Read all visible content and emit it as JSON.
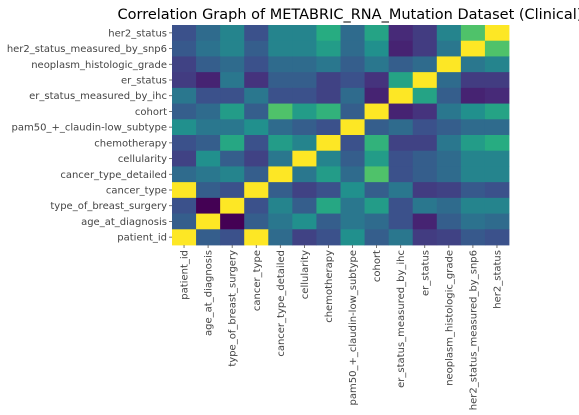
{
  "chart_data": {
    "type": "heatmap",
    "title": "Correlation Graph of METABRIC_RNA_Mutation Dataset (Clinical)",
    "xlabel": "",
    "ylabel": "",
    "colormap": "viridis",
    "grid": false,
    "legend": "none",
    "x_labels": [
      "patient_id",
      "age_at_diagnosis",
      "type_of_breast_surgery",
      "cancer_type",
      "cancer_type_detailed",
      "cellularity",
      "chemotherapy",
      "pam50_+_claudin-low_subtype",
      "cohort",
      "er_status_measured_by_ihc",
      "er_status",
      "neoplasm_histologic_grade",
      "her2_status_measured_by_snp6",
      "her2_status"
    ],
    "y_labels": [
      "her2_status",
      "her2_status_measured_by_snp6",
      "neoplasm_histologic_grade",
      "er_status",
      "er_status_measured_by_ihc",
      "cohort",
      "pam50_+_claudin-low_subtype",
      "chemotherapy",
      "cellularity",
      "cancer_type_detailed",
      "cancer_type",
      "type_of_breast_surgery",
      "age_at_diagnosis",
      "patient_id"
    ],
    "values": [
      [
        0.25,
        0.35,
        0.45,
        0.25,
        0.45,
        0.45,
        0.62,
        0.35,
        0.58,
        0.12,
        0.18,
        0.45,
        0.72,
        1.0
      ],
      [
        0.28,
        0.38,
        0.45,
        0.3,
        0.45,
        0.45,
        0.55,
        0.35,
        0.5,
        0.1,
        0.18,
        0.4,
        1.0,
        0.72
      ],
      [
        0.2,
        0.3,
        0.35,
        0.25,
        0.35,
        0.35,
        0.4,
        0.3,
        0.4,
        0.3,
        0.35,
        1.0,
        0.4,
        0.45
      ],
      [
        0.18,
        0.1,
        0.4,
        0.15,
        0.3,
        0.3,
        0.2,
        0.25,
        0.15,
        0.58,
        1.0,
        0.35,
        0.18,
        0.18
      ],
      [
        0.4,
        0.25,
        0.25,
        0.4,
        0.25,
        0.25,
        0.2,
        0.35,
        0.1,
        1.0,
        0.58,
        0.3,
        0.1,
        0.12
      ],
      [
        0.3,
        0.35,
        0.55,
        0.3,
        0.72,
        0.55,
        0.65,
        0.3,
        1.0,
        0.1,
        0.15,
        0.4,
        0.5,
        0.58
      ],
      [
        0.5,
        0.4,
        0.4,
        0.5,
        0.35,
        0.3,
        0.25,
        1.0,
        0.3,
        0.35,
        0.25,
        0.3,
        0.35,
        0.35
      ],
      [
        0.25,
        0.3,
        0.6,
        0.25,
        0.55,
        0.45,
        1.0,
        0.25,
        0.65,
        0.2,
        0.2,
        0.4,
        0.55,
        0.62
      ],
      [
        0.2,
        0.5,
        0.3,
        0.2,
        0.4,
        1.0,
        0.45,
        0.3,
        0.55,
        0.25,
        0.3,
        0.35,
        0.45,
        0.45
      ],
      [
        0.35,
        0.4,
        0.45,
        0.3,
        1.0,
        0.4,
        0.55,
        0.35,
        0.72,
        0.25,
        0.3,
        0.35,
        0.45,
        0.45
      ],
      [
        1.0,
        0.3,
        0.25,
        1.0,
        0.3,
        0.2,
        0.25,
        0.5,
        0.3,
        0.4,
        0.18,
        0.2,
        0.28,
        0.25
      ],
      [
        0.25,
        0.0,
        1.0,
        0.25,
        0.45,
        0.3,
        0.6,
        0.4,
        0.55,
        0.25,
        0.4,
        0.35,
        0.45,
        0.45
      ],
      [
        0.3,
        1.0,
        0.0,
        0.3,
        0.4,
        0.5,
        0.3,
        0.4,
        0.35,
        0.25,
        0.1,
        0.3,
        0.38,
        0.35
      ],
      [
        1.0,
        0.3,
        0.25,
        1.0,
        0.35,
        0.2,
        0.25,
        0.5,
        0.3,
        0.4,
        0.18,
        0.2,
        0.28,
        0.25
      ]
    ]
  }
}
